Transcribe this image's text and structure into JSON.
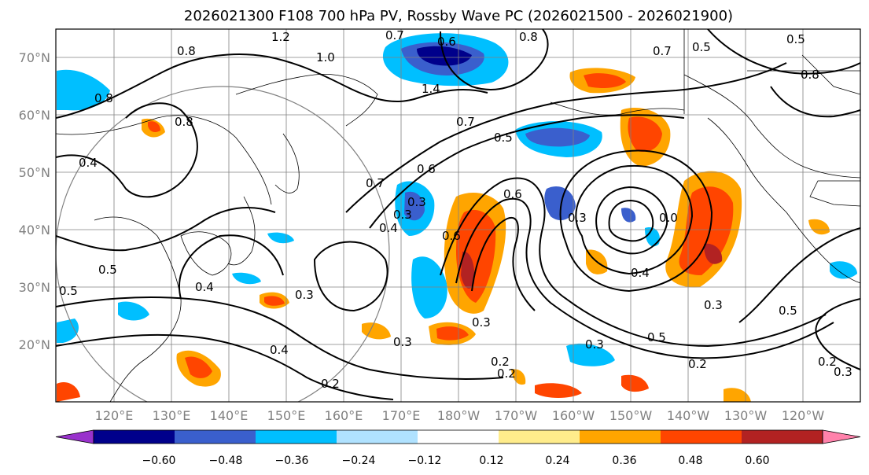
{
  "title": "2026021300 F108 700 hPa PV, Rossby Wave PC (2026021500 - 2026021900)",
  "map": {
    "lat_labels": [
      "70°N",
      "60°N",
      "50°N",
      "40°N",
      "30°N",
      "20°N"
    ],
    "lon_labels": [
      "120°E",
      "130°E",
      "140°E",
      "150°E",
      "160°E",
      "170°E",
      "180°W",
      "170°W",
      "160°W",
      "150°W",
      "140°W",
      "130°W",
      "120°W"
    ],
    "contour_labels": [
      "1.2",
      "0.8",
      "0.7",
      "0.6",
      "1.0",
      "0.8",
      "0.7",
      "0.5",
      "0.5",
      "0.8",
      "0.8",
      "0.8",
      "0.7",
      "0.5",
      "0.4",
      "0.7",
      "0.6",
      "0.3",
      "0.4",
      "0.6",
      "0.6",
      "0.3",
      "0.0",
      "0.5",
      "0.4",
      "0.5",
      "0.3",
      "0.3",
      "0.4",
      "0.2",
      "0.3",
      "0.4",
      "0.3",
      "0.2",
      "0.5",
      "0.3",
      "0.2",
      "0.3",
      "0.2",
      "0.5",
      "0.2",
      "0.3",
      "1.4"
    ]
  },
  "colorbar": {
    "ticks": [
      "−0.60",
      "−0.48",
      "−0.36",
      "−0.24",
      "−0.12",
      "0.12",
      "0.24",
      "0.36",
      "0.48",
      "0.60"
    ],
    "colors": [
      "#9932cc",
      "#00008b",
      "#3a5fcd",
      "#00bfff",
      "#b0e2ff",
      "#ffffff",
      "#ffec8b",
      "#ffa500",
      "#ff4500",
      "#b22222",
      "#ff82ab"
    ]
  }
}
